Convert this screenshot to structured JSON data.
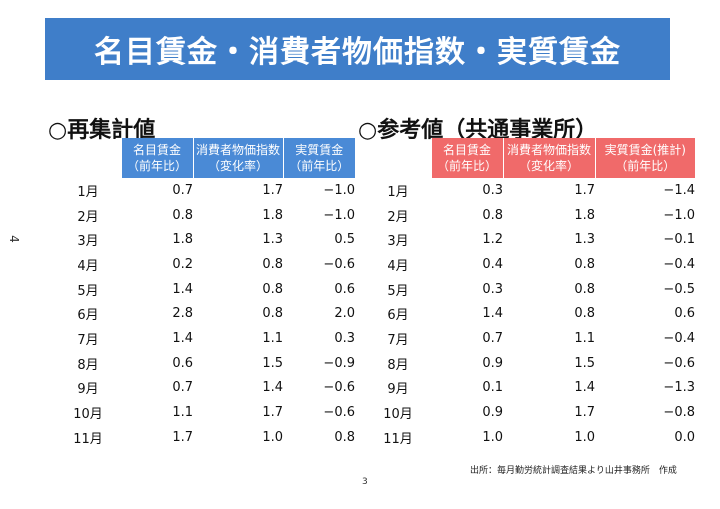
{
  "title": "名目賃金・消費者物価指数・実質賃金",
  "side_page_number": "4",
  "page_number": "3",
  "left": {
    "heading": "○再集計値",
    "headers": [
      "名目賃金\n（前年比）",
      "消費者物価指数\n（変化率）",
      "実質賃金\n（前年比）"
    ],
    "rows": [
      {
        "month": "1月",
        "v": [
          "0.7",
          "1.7",
          "−1.0"
        ]
      },
      {
        "month": "2月",
        "v": [
          "0.8",
          "1.8",
          "−1.0"
        ]
      },
      {
        "month": "3月",
        "v": [
          "1.8",
          "1.3",
          "0.5"
        ]
      },
      {
        "month": "4月",
        "v": [
          "0.2",
          "0.8",
          "−0.6"
        ]
      },
      {
        "month": "5月",
        "v": [
          "1.4",
          "0.8",
          "0.6"
        ]
      },
      {
        "month": "6月",
        "v": [
          "2.8",
          "0.8",
          "2.0"
        ]
      },
      {
        "month": "7月",
        "v": [
          "1.4",
          "1.1",
          "0.3"
        ]
      },
      {
        "month": "8月",
        "v": [
          "0.6",
          "1.5",
          "−0.9"
        ]
      },
      {
        "month": "9月",
        "v": [
          "0.7",
          "1.4",
          "−0.6"
        ]
      },
      {
        "month": "10月",
        "v": [
          "1.1",
          "1.7",
          "−0.6"
        ]
      },
      {
        "month": "11月",
        "v": [
          "1.7",
          "1.0",
          "0.8"
        ]
      }
    ]
  },
  "right": {
    "heading": "○参考値（共通事業所）",
    "headers": [
      "名目賃金\n（前年比）",
      "消費者物価指数\n（変化率）",
      "実質賃金(推計)\n（前年比）"
    ],
    "rows": [
      {
        "month": "1月",
        "v": [
          "0.3",
          "1.7",
          "−1.4"
        ]
      },
      {
        "month": "2月",
        "v": [
          "0.8",
          "1.8",
          "−1.0"
        ]
      },
      {
        "month": "3月",
        "v": [
          "1.2",
          "1.3",
          "−0.1"
        ]
      },
      {
        "month": "4月",
        "v": [
          "0.4",
          "0.8",
          "−0.4"
        ]
      },
      {
        "month": "5月",
        "v": [
          "0.3",
          "0.8",
          "−0.5"
        ]
      },
      {
        "month": "6月",
        "v": [
          "1.4",
          "0.8",
          "0.6"
        ]
      },
      {
        "month": "7月",
        "v": [
          "0.7",
          "1.1",
          "−0.4"
        ]
      },
      {
        "month": "8月",
        "v": [
          "0.9",
          "1.5",
          "−0.6"
        ]
      },
      {
        "month": "9月",
        "v": [
          "0.1",
          "1.4",
          "−1.3"
        ]
      },
      {
        "month": "10月",
        "v": [
          "0.9",
          "1.7",
          "−0.8"
        ]
      },
      {
        "month": "11月",
        "v": [
          "1.0",
          "1.0",
          "0.0"
        ]
      }
    ]
  },
  "source": "出所：毎月勤労統計調査結果より山井事務所　作成"
}
